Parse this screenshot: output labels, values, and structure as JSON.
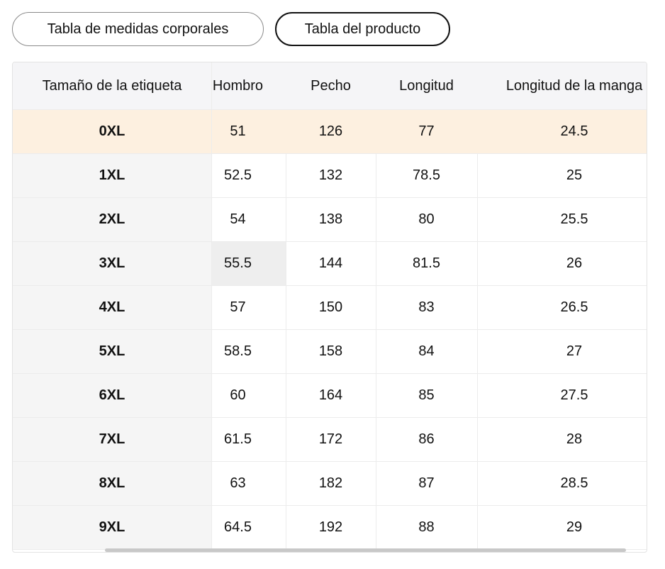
{
  "tabs": [
    "Tabla de medidas corporales",
    "Tabla del producto"
  ],
  "table": {
    "header": [
      "Tamaño de la etiqueta",
      "Hombro",
      "Pecho",
      "Longitud",
      "Longitud de la manga"
    ],
    "rows": [
      [
        "0XL",
        "51",
        "126",
        "77",
        "24.5"
      ],
      [
        "1XL",
        "52.5",
        "132",
        "78.5",
        "25"
      ],
      [
        "2XL",
        "54",
        "138",
        "80",
        "25.5"
      ],
      [
        "3XL",
        "55.5",
        "144",
        "81.5",
        "26"
      ],
      [
        "4XL",
        "57",
        "150",
        "83",
        "26.5"
      ],
      [
        "5XL",
        "58.5",
        "158",
        "84",
        "27"
      ],
      [
        "6XL",
        "60",
        "164",
        "85",
        "27.5"
      ],
      [
        "7XL",
        "61.5",
        "172",
        "86",
        "28"
      ],
      [
        "8XL",
        "63",
        "182",
        "87",
        "28.5"
      ],
      [
        "9XL",
        "64.5",
        "192",
        "88",
        "29"
      ]
    ]
  }
}
